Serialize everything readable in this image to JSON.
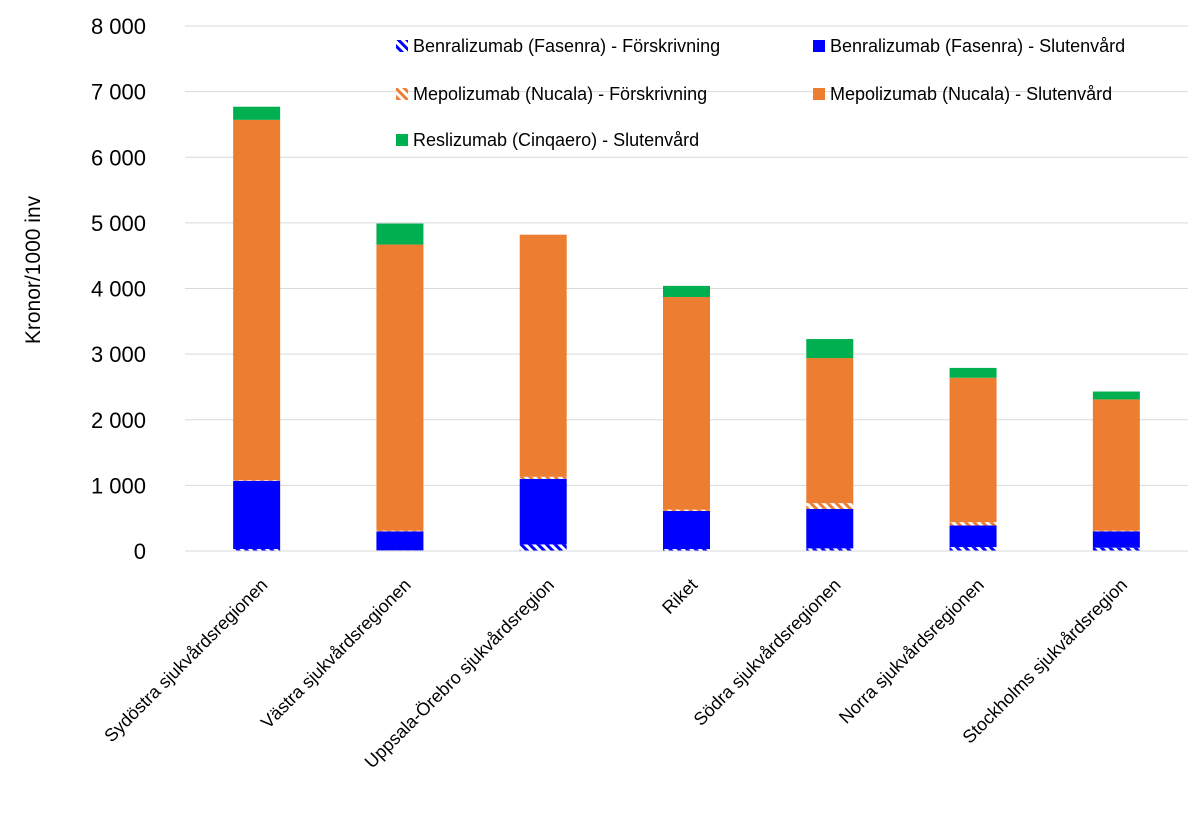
{
  "chart_data": {
    "type": "bar",
    "stacked": true,
    "ylabel": "Kronor/1000 inv",
    "xlabel": "",
    "ylim": [
      0,
      8000
    ],
    "yticks": [
      0,
      1000,
      2000,
      3000,
      4000,
      5000,
      6000,
      7000,
      8000
    ],
    "ytick_labels": [
      "0",
      "1 000",
      "2 000",
      "3 000",
      "4 000",
      "5 000",
      "6 000",
      "7 000",
      "8 000"
    ],
    "grid": true,
    "legend_position": "top-right",
    "categories": [
      "Sydöstra sjukvårdsregionen",
      "Västra sjukvårdsregionen",
      "Uppsala-Örebro sjukvårdsregion",
      "Riket",
      "Södra sjukvårdsregionen",
      "Norra sjukvårdsregionen",
      "Stockholms sjukvårdsregion"
    ],
    "series": [
      {
        "name": "Benralizumab (Fasenra) - Förskrivning",
        "color": "#0000FF",
        "pattern": "hatched",
        "values": [
          30,
          10,
          100,
          30,
          40,
          60,
          50
        ]
      },
      {
        "name": "Benralizumab (Fasenra) - Slutenvård",
        "color": "#0000FF",
        "pattern": "solid",
        "values": [
          1040,
          290,
          1000,
          580,
          600,
          330,
          250
        ]
      },
      {
        "name": "Mepolizumab (Nucala) - Förskrivning",
        "color": "#ED7D31",
        "pattern": "hatched",
        "values": [
          10,
          10,
          30,
          20,
          90,
          50,
          10
        ]
      },
      {
        "name": "Mepolizumab (Nucala) - Slutenvård",
        "color": "#ED7D31",
        "pattern": "solid",
        "values": [
          5490,
          4360,
          3690,
          3240,
          2210,
          2200,
          2000
        ]
      },
      {
        "name": "Reslizumab (Cinqaero) - Slutenvård",
        "color": "#00B050",
        "pattern": "solid",
        "values": [
          200,
          320,
          0,
          170,
          290,
          150,
          120
        ]
      }
    ]
  }
}
